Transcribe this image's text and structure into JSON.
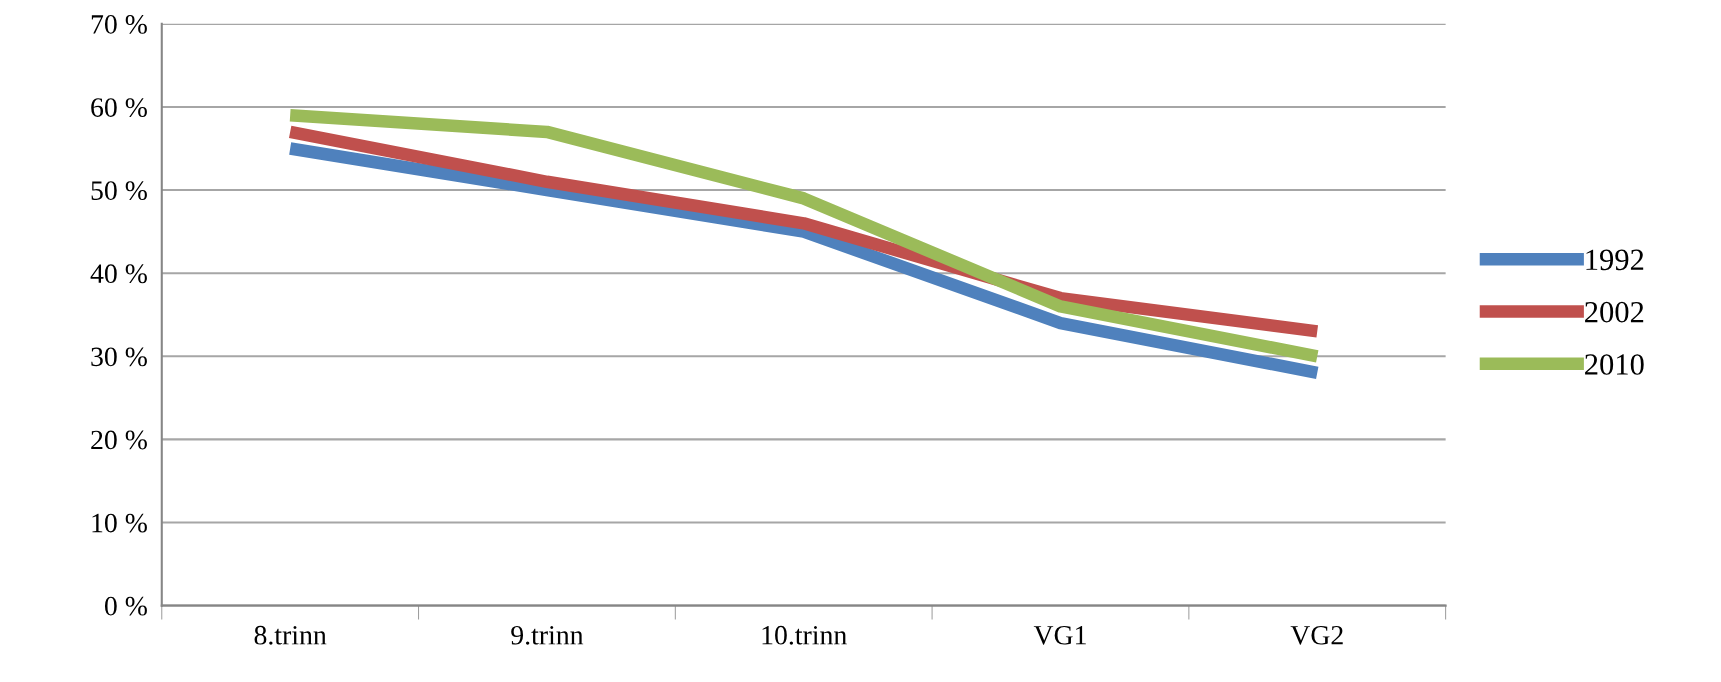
{
  "chart_data": {
    "type": "line",
    "categories": [
      "8.trinn",
      "9.trinn",
      "10.trinn",
      "VG1",
      "VG2"
    ],
    "series": [
      {
        "name": "1992",
        "color": "#4f81bd",
        "values": [
          55,
          50,
          45,
          34,
          28
        ]
      },
      {
        "name": "2002",
        "color": "#c0504d",
        "values": [
          57,
          51,
          46,
          37,
          33
        ]
      },
      {
        "name": "2010",
        "color": "#9bbb59",
        "values": [
          59,
          57,
          49,
          36,
          30
        ]
      }
    ],
    "ylim": [
      0,
      70
    ],
    "yticks": [
      {
        "value": 0,
        "label": "0 %"
      },
      {
        "value": 10,
        "label": "10 %"
      },
      {
        "value": 20,
        "label": "20 %"
      },
      {
        "value": 30,
        "label": "30 %"
      },
      {
        "value": 40,
        "label": "40 %"
      },
      {
        "value": 50,
        "label": "50 %"
      },
      {
        "value": 60,
        "label": "60 %"
      },
      {
        "value": 70,
        "label": "70 %"
      }
    ],
    "grid": "y",
    "legend": "right",
    "marker": "none",
    "line_style": "solid"
  }
}
